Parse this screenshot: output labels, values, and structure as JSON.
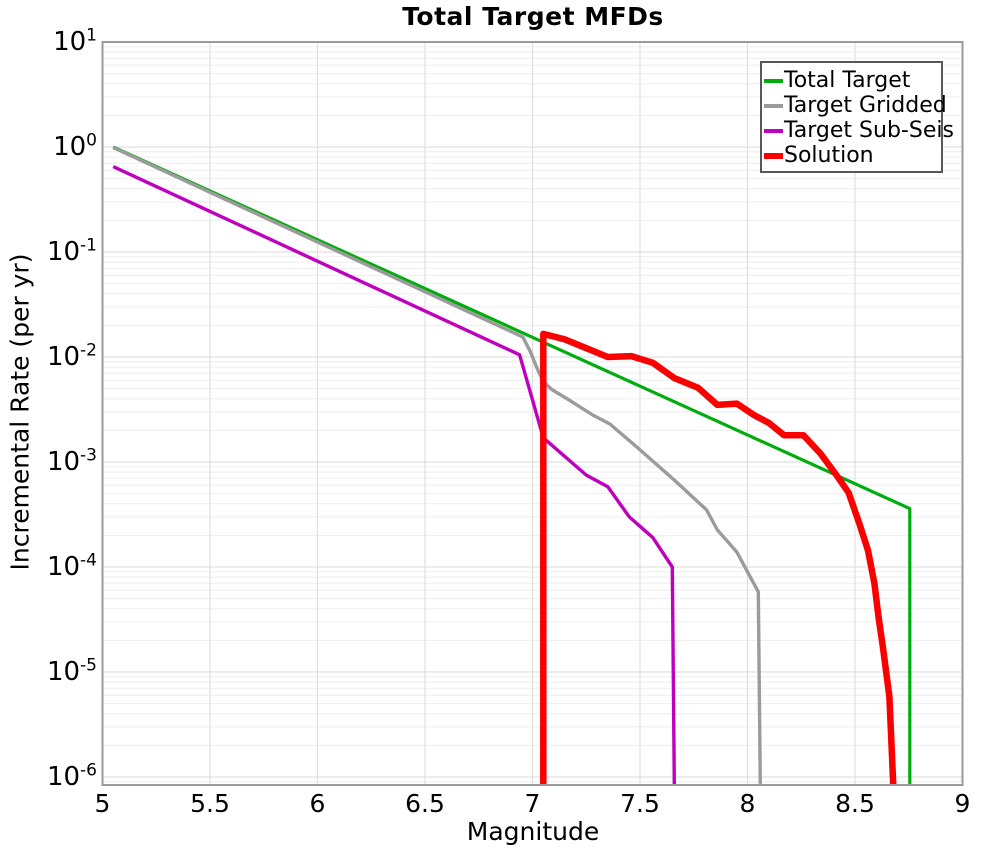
{
  "title": "Total Target MFDs",
  "axes": {
    "x": {
      "label": "Magnitude",
      "min": 5,
      "max": 9,
      "ticks": [
        5,
        5.5,
        6,
        6.5,
        7,
        7.5,
        8,
        8.5,
        9
      ],
      "tick_labels": [
        "5",
        "5.5",
        "6",
        "6.5",
        "7",
        "7.5",
        "8",
        "8.5",
        "9"
      ],
      "gridline_step": 0.5
    },
    "y": {
      "label": "Incremental Rate (per yr)",
      "scale": "log",
      "tick_exponents": [
        1,
        0,
        -1,
        -2,
        -3,
        -4,
        -5,
        -6
      ],
      "min": 1e-06,
      "max": 10,
      "grid": "major-and-minor"
    }
  },
  "legend": {
    "position": "top-right",
    "items": [
      {
        "label": "Total Target",
        "color": "#00ad0c",
        "thickness": 4
      },
      {
        "label": "Target Gridded",
        "color": "#9b9b9b",
        "thickness": 4
      },
      {
        "label": "Target Sub-Seis",
        "color": "#bf00bf",
        "thickness": 4
      },
      {
        "label": "Solution",
        "color": "#fb0000",
        "thickness": 6
      }
    ]
  },
  "colors": {
    "background": "#ffffff",
    "plot_background": "#ffffff",
    "spine": "#9a9a9a",
    "grid_major": "#e0e0e0",
    "grid_minor": "#eeeeee",
    "text": "#000000"
  },
  "chart_data": {
    "type": "line",
    "title": "Total Target MFDs",
    "xlabel": "Magnitude",
    "ylabel": "Incremental Rate (per yr)",
    "xlim": [
      5,
      9
    ],
    "ylim": [
      1e-06,
      10
    ],
    "y_scale": "log",
    "note": "rate 0 means the curve plunges off the bottom of the log axis (terminates)",
    "series": [
      {
        "name": "Total Target",
        "color": "#00ad0c",
        "width": 3.2,
        "points": [
          [
            5.05,
            1.0
          ],
          [
            8.755,
            0.00036
          ],
          [
            8.755,
            0
          ]
        ]
      },
      {
        "name": "Target Gridded",
        "color": "#9b9b9b",
        "width": 3.4,
        "points": [
          [
            5.05,
            0.99
          ],
          [
            6.955,
            0.0155
          ],
          [
            6.99,
            0.0112
          ],
          [
            7.02,
            0.0079
          ],
          [
            7.05,
            0.0058
          ],
          [
            7.09,
            0.0049
          ],
          [
            7.17,
            0.0039
          ],
          [
            7.28,
            0.0028
          ],
          [
            7.36,
            0.0023
          ],
          [
            7.49,
            0.00136
          ],
          [
            7.65,
            0.0007
          ],
          [
            7.81,
            0.00035
          ],
          [
            7.86,
            0.000225
          ],
          [
            7.95,
            0.000139
          ],
          [
            8.05,
            5.8e-05
          ],
          [
            8.06,
            0
          ]
        ]
      },
      {
        "name": "Target Sub-Seis",
        "color": "#bf00bf",
        "width": 3.4,
        "points": [
          [
            5.05,
            0.65
          ],
          [
            6.94,
            0.0105
          ],
          [
            7.05,
            0.0017
          ],
          [
            7.25,
            0.00075
          ],
          [
            7.35,
            0.00058
          ],
          [
            7.45,
            0.0003
          ],
          [
            7.56,
            0.00019
          ],
          [
            7.65,
            0.0001
          ],
          [
            7.66,
            0
          ]
        ]
      },
      {
        "name": "Solution",
        "color": "#fb0000",
        "width": 6.5,
        "points": [
          [
            7.05,
            0
          ],
          [
            7.05,
            0.0166
          ],
          [
            7.15,
            0.0147
          ],
          [
            7.35,
            0.01
          ],
          [
            7.46,
            0.0102
          ],
          [
            7.56,
            0.0088
          ],
          [
            7.66,
            0.0063
          ],
          [
            7.77,
            0.0051
          ],
          [
            7.86,
            0.0035
          ],
          [
            7.95,
            0.0036
          ],
          [
            8.03,
            0.0028
          ],
          [
            8.1,
            0.00235
          ],
          [
            8.17,
            0.0018
          ],
          [
            8.26,
            0.0018
          ],
          [
            8.34,
            0.0012
          ],
          [
            8.42,
            0.00072
          ],
          [
            8.47,
            0.00051
          ],
          [
            8.52,
            0.00026
          ],
          [
            8.56,
            0.000145
          ],
          [
            8.59,
            7e-05
          ],
          [
            8.61,
            3.3e-05
          ],
          [
            8.63,
            1.7e-05
          ],
          [
            8.66,
            5.8e-06
          ],
          [
            8.68,
            0
          ]
        ]
      }
    ]
  }
}
